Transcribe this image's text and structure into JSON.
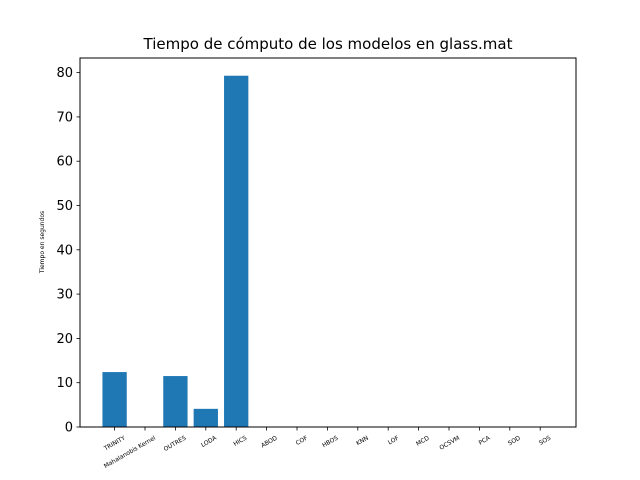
{
  "chart_data": {
    "type": "bar",
    "title": "Tiempo de cómputo de los modelos en glass.mat",
    "xlabel": "",
    "ylabel": "Tiempo en segundos",
    "categories": [
      "TRINITY",
      "Mahalanobis Kernel",
      "OUTRES",
      "LODA",
      "HICS",
      "ABOD",
      "COF",
      "HBOS",
      "KNN",
      "LOF",
      "MCD",
      "OCSVM",
      "PCA",
      "SOD",
      "SOS"
    ],
    "values": [
      12.4,
      0.1,
      11.5,
      4.1,
      79.3,
      0.02,
      0.05,
      0.01,
      0.02,
      0.02,
      0.05,
      0.01,
      0.01,
      0.05,
      0.02
    ],
    "ylim": [
      0,
      83.3
    ],
    "yticks": [
      0,
      10,
      20,
      30,
      40,
      50,
      60,
      70,
      80
    ],
    "bar_color": "#1f77b4",
    "grid": false,
    "legend": null
  }
}
